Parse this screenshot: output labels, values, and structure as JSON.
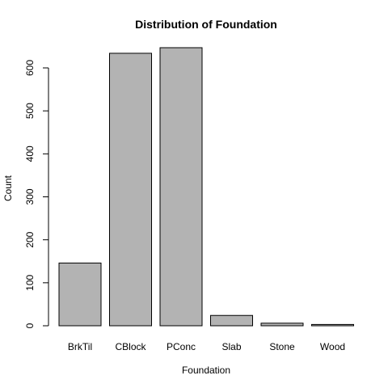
{
  "chart_data": {
    "type": "bar",
    "title": "Distribution of Foundation",
    "xlabel": "Foundation",
    "ylabel": "Count",
    "categories": [
      "BrkTil",
      "CBlock",
      "PConc",
      "Slab",
      "Stone",
      "Wood"
    ],
    "values": [
      146,
      634,
      647,
      24,
      6,
      3
    ],
    "ylim": [
      0,
      647
    ],
    "yticks": [
      0,
      100,
      200,
      300,
      400,
      500,
      600
    ],
    "bar_color": "#b3b3b3",
    "grid": false,
    "legend": "none"
  }
}
